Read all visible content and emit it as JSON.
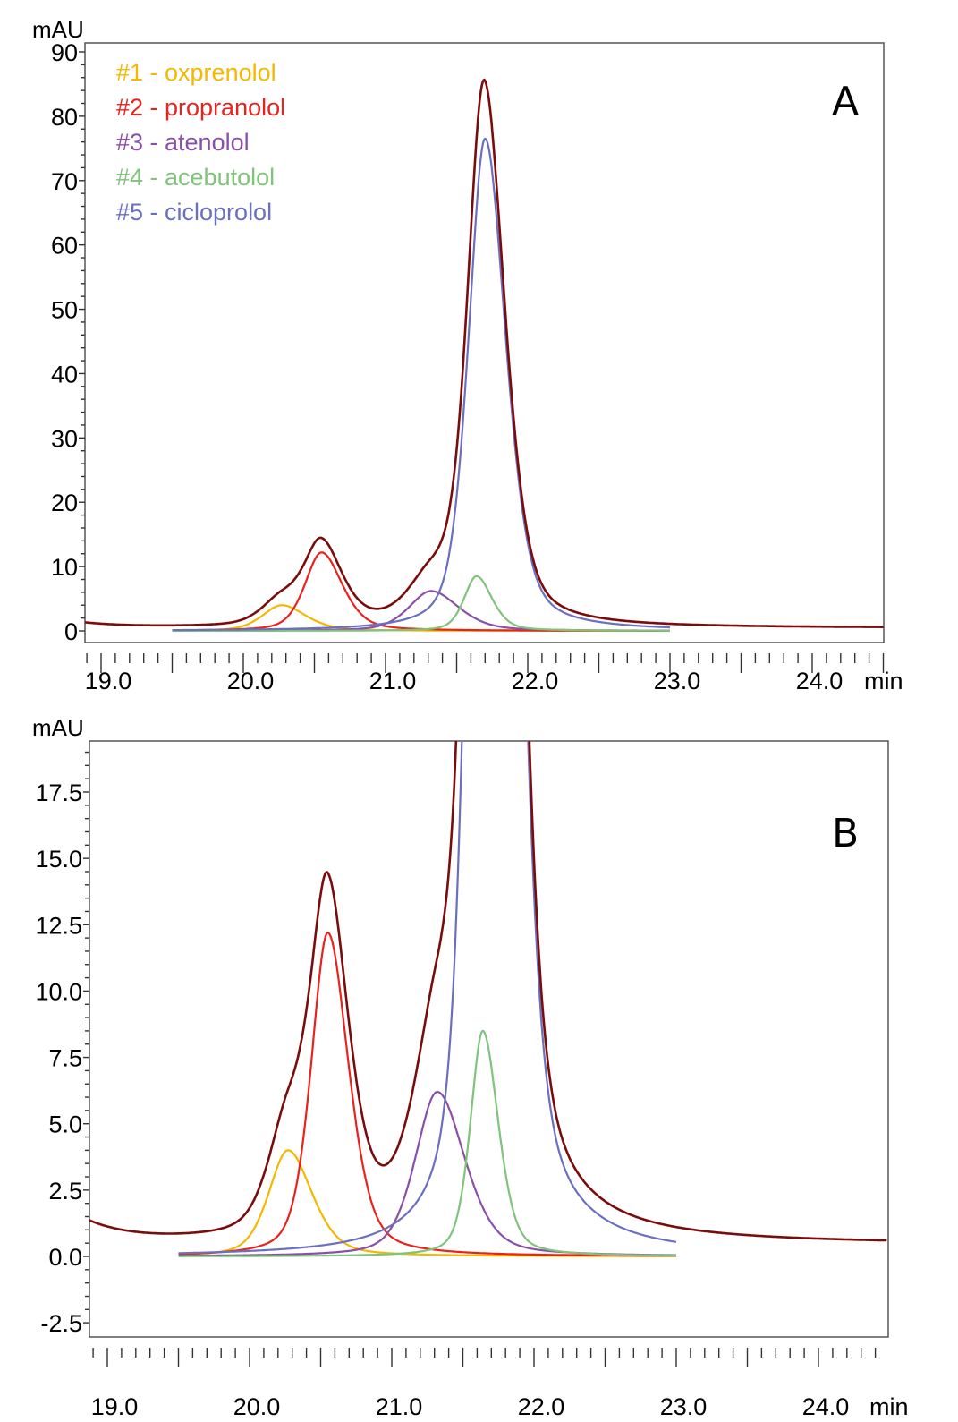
{
  "chart_data": [
    {
      "type": "line",
      "panel": "A",
      "title": "",
      "xlabel": "min",
      "ylabel": "mAU",
      "xlim": [
        18.88,
        24.5
      ],
      "ylim": [
        -1.8,
        91.5
      ],
      "x_ticks": [
        "19.0",
        "20.0",
        "21.0",
        "22.0",
        "23.0",
        "24.0"
      ],
      "x_tick_values": [
        19.0,
        20.0,
        21.0,
        22.0,
        23.0,
        24.0
      ],
      "y_ticks": [
        "0",
        "10",
        "20",
        "30",
        "40",
        "50",
        "60",
        "70",
        "80",
        "90"
      ],
      "y_tick_values": [
        0,
        10,
        20,
        30,
        40,
        50,
        60,
        70,
        80,
        90
      ],
      "grid": false,
      "legend": "top-left",
      "panel_label": "A"
    },
    {
      "type": "line",
      "panel": "B",
      "title": "",
      "xlabel": "min",
      "ylabel": "mAU",
      "xlim": [
        18.86,
        24.48
      ],
      "ylim": [
        -2.8,
        19.4
      ],
      "x_ticks": [
        "19.0",
        "20.0",
        "21.0",
        "22.0",
        "23.0",
        "24.0"
      ],
      "x_tick_values": [
        19.0,
        20.0,
        21.0,
        22.0,
        23.0,
        24.0
      ],
      "y_ticks": [
        "-2.5",
        "0.0",
        "2.5",
        "5.0",
        "7.5",
        "10.0",
        "12.5",
        "15.0",
        "17.5"
      ],
      "y_tick_values": [
        -2.5,
        0,
        2.5,
        5,
        7.5,
        10,
        12.5,
        15,
        17.5
      ],
      "grid": false,
      "legend": "none",
      "panel_label": "B"
    }
  ],
  "series": [
    {
      "name": "#1 - oxprenolol",
      "color": "#f5b800",
      "peak_time": 20.27,
      "height": 4.0,
      "width": 0.14,
      "range": [
        19.5,
        23.0
      ]
    },
    {
      "name": "#2 - propranolol",
      "color": "#e8231e",
      "peak_time": 20.55,
      "height": 12.2,
      "width": 0.12,
      "range": [
        19.5,
        23.0
      ]
    },
    {
      "name": "#3 - atenolol",
      "color": "#8a4fa8",
      "peak_time": 21.32,
      "height": 6.2,
      "width": 0.16,
      "range": [
        19.5,
        23.0
      ]
    },
    {
      "name": "#4 - acebutolol",
      "color": "#7fc47a",
      "peak_time": 21.64,
      "height": 8.5,
      "width": 0.09,
      "range": [
        19.5,
        23.0
      ]
    },
    {
      "name": "#5 - cicloprolol",
      "color": "#6a6fbf",
      "peak_time": 21.7,
      "height": 76.5,
      "width": 0.12,
      "range": [
        19.5,
        23.0
      ]
    }
  ],
  "total_trace": {
    "name": "total",
    "color": "#7a0c0c",
    "peak_value": 87.0,
    "baseline_start": 1.2,
    "baseline_end": 0.45
  },
  "axis_unit_y": "mAU",
  "axis_unit_x": "min"
}
